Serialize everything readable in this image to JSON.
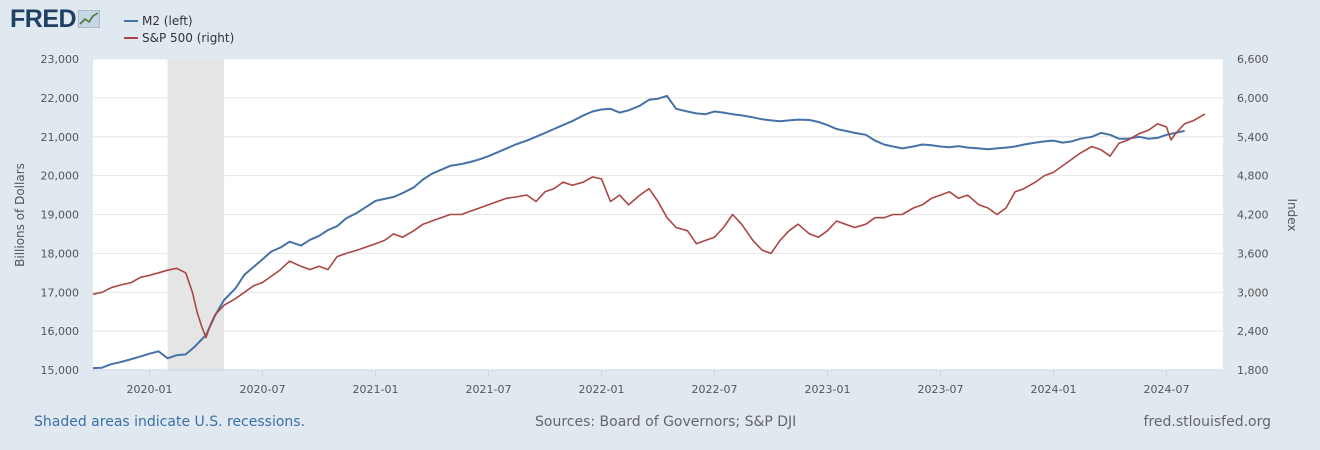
{
  "brand": {
    "name": "FRED",
    "icon": "fred-chart-logo-icon"
  },
  "colors": {
    "m2": "#4572a7",
    "sp500": "#aa4643",
    "recession": "#e5e5e5",
    "grid": "#e6e6e6",
    "background": "#e1e9f0"
  },
  "legend": [
    {
      "label": "M2 (left)",
      "color": "#4572a7"
    },
    {
      "label": "S&P 500 (right)",
      "color": "#aa4643"
    }
  ],
  "footer": {
    "recession_note": "Shaded areas indicate U.S. recessions.",
    "sources": "Sources: Board of Governors; S&P DJI",
    "site": "fred.stlouisfed.org"
  },
  "chart_data": {
    "type": "line",
    "xlim": [
      2019.75,
      2024.75
    ],
    "x_ticks": [
      {
        "label": "2020-01",
        "x": 2020.0
      },
      {
        "label": "2020-07",
        "x": 2020.5
      },
      {
        "label": "2021-01",
        "x": 2021.0
      },
      {
        "label": "2021-07",
        "x": 2021.5
      },
      {
        "label": "2022-01",
        "x": 2022.0
      },
      {
        "label": "2022-07",
        "x": 2022.5
      },
      {
        "label": "2023-01",
        "x": 2023.0
      },
      {
        "label": "2023-07",
        "x": 2023.5
      },
      {
        "label": "2024-01",
        "x": 2024.0
      },
      {
        "label": "2024-07",
        "x": 2024.5
      }
    ],
    "left_axis": {
      "label": "Billions of Dollars",
      "range": [
        15000,
        23000
      ],
      "ticks": [
        {
          "label": "15,000",
          "value": 15000
        },
        {
          "label": "16,000",
          "value": 16000
        },
        {
          "label": "17,000",
          "value": 17000
        },
        {
          "label": "18,000",
          "value": 18000
        },
        {
          "label": "19,000",
          "value": 19000
        },
        {
          "label": "20,000",
          "value": 20000
        },
        {
          "label": "21,000",
          "value": 21000
        },
        {
          "label": "22,000",
          "value": 22000
        },
        {
          "label": "23,000",
          "value": 23000
        }
      ]
    },
    "right_axis": {
      "label": "Index",
      "range": [
        1800,
        6600
      ],
      "ticks": [
        {
          "label": "1,800",
          "value": 1800
        },
        {
          "label": "2,400",
          "value": 2400
        },
        {
          "label": "3,000",
          "value": 3000
        },
        {
          "label": "3,600",
          "value": 3600
        },
        {
          "label": "4,200",
          "value": 4200
        },
        {
          "label": "4,800",
          "value": 4800
        },
        {
          "label": "5,400",
          "value": 5400
        },
        {
          "label": "6,000",
          "value": 6000
        },
        {
          "label": "6,600",
          "value": 6600
        }
      ]
    },
    "recessions": [
      {
        "start": 2020.08,
        "end": 2020.33
      }
    ],
    "series": [
      {
        "name": "M2 (left)",
        "axis": "left",
        "color": "#4572a7",
        "points": [
          [
            2019.75,
            15050
          ],
          [
            2019.79,
            15060
          ],
          [
            2019.83,
            15150
          ],
          [
            2019.87,
            15200
          ],
          [
            2019.92,
            15280
          ],
          [
            2019.96,
            15350
          ],
          [
            2020.0,
            15420
          ],
          [
            2020.04,
            15480
          ],
          [
            2020.08,
            15300
          ],
          [
            2020.12,
            15380
          ],
          [
            2020.16,
            15400
          ],
          [
            2020.2,
            15600
          ],
          [
            2020.25,
            15900
          ],
          [
            2020.29,
            16400
          ],
          [
            2020.33,
            16800
          ],
          [
            2020.38,
            17100
          ],
          [
            2020.42,
            17450
          ],
          [
            2020.46,
            17650
          ],
          [
            2020.5,
            17850
          ],
          [
            2020.54,
            18050
          ],
          [
            2020.58,
            18150
          ],
          [
            2020.62,
            18300
          ],
          [
            2020.67,
            18200
          ],
          [
            2020.71,
            18350
          ],
          [
            2020.75,
            18450
          ],
          [
            2020.79,
            18600
          ],
          [
            2020.83,
            18700
          ],
          [
            2020.87,
            18900
          ],
          [
            2020.92,
            19050
          ],
          [
            2020.96,
            19200
          ],
          [
            2021.0,
            19350
          ],
          [
            2021.04,
            19400
          ],
          [
            2021.08,
            19450
          ],
          [
            2021.12,
            19550
          ],
          [
            2021.17,
            19700
          ],
          [
            2021.21,
            19900
          ],
          [
            2021.25,
            20050
          ],
          [
            2021.29,
            20150
          ],
          [
            2021.33,
            20250
          ],
          [
            2021.38,
            20300
          ],
          [
            2021.42,
            20350
          ],
          [
            2021.46,
            20420
          ],
          [
            2021.5,
            20500
          ],
          [
            2021.54,
            20600
          ],
          [
            2021.58,
            20700
          ],
          [
            2021.62,
            20800
          ],
          [
            2021.67,
            20900
          ],
          [
            2021.71,
            21000
          ],
          [
            2021.75,
            21100
          ],
          [
            2021.79,
            21200
          ],
          [
            2021.83,
            21300
          ],
          [
            2021.87,
            21400
          ],
          [
            2021.92,
            21550
          ],
          [
            2021.96,
            21650
          ],
          [
            2022.0,
            21700
          ],
          [
            2022.04,
            21720
          ],
          [
            2022.08,
            21620
          ],
          [
            2022.12,
            21680
          ],
          [
            2022.17,
            21800
          ],
          [
            2022.21,
            21950
          ],
          [
            2022.25,
            21980
          ],
          [
            2022.29,
            22050
          ],
          [
            2022.33,
            21720
          ],
          [
            2022.38,
            21650
          ],
          [
            2022.42,
            21600
          ],
          [
            2022.46,
            21580
          ],
          [
            2022.5,
            21650
          ],
          [
            2022.54,
            21620
          ],
          [
            2022.58,
            21580
          ],
          [
            2022.62,
            21550
          ],
          [
            2022.67,
            21500
          ],
          [
            2022.71,
            21450
          ],
          [
            2022.75,
            21420
          ],
          [
            2022.79,
            21400
          ],
          [
            2022.83,
            21420
          ],
          [
            2022.87,
            21440
          ],
          [
            2022.92,
            21430
          ],
          [
            2022.96,
            21380
          ],
          [
            2023.0,
            21300
          ],
          [
            2023.04,
            21200
          ],
          [
            2023.08,
            21150
          ],
          [
            2023.12,
            21100
          ],
          [
            2023.17,
            21050
          ],
          [
            2023.21,
            20900
          ],
          [
            2023.25,
            20800
          ],
          [
            2023.29,
            20750
          ],
          [
            2023.33,
            20700
          ],
          [
            2023.38,
            20750
          ],
          [
            2023.42,
            20800
          ],
          [
            2023.46,
            20780
          ],
          [
            2023.5,
            20750
          ],
          [
            2023.54,
            20730
          ],
          [
            2023.58,
            20760
          ],
          [
            2023.62,
            20720
          ],
          [
            2023.67,
            20700
          ],
          [
            2023.71,
            20680
          ],
          [
            2023.75,
            20700
          ],
          [
            2023.79,
            20720
          ],
          [
            2023.83,
            20750
          ],
          [
            2023.87,
            20800
          ],
          [
            2023.92,
            20850
          ],
          [
            2023.96,
            20880
          ],
          [
            2024.0,
            20900
          ],
          [
            2024.04,
            20850
          ],
          [
            2024.08,
            20880
          ],
          [
            2024.12,
            20950
          ],
          [
            2024.17,
            21000
          ],
          [
            2024.21,
            21100
          ],
          [
            2024.25,
            21050
          ],
          [
            2024.29,
            20950
          ],
          [
            2024.33,
            20950
          ],
          [
            2024.38,
            21000
          ],
          [
            2024.42,
            20950
          ],
          [
            2024.46,
            20970
          ],
          [
            2024.5,
            21050
          ],
          [
            2024.54,
            21100
          ],
          [
            2024.58,
            21150
          ]
        ]
      },
      {
        "name": "S&P 500 (right)",
        "axis": "right",
        "color": "#aa4643",
        "points": [
          [
            2019.75,
            2970
          ],
          [
            2019.79,
            3000
          ],
          [
            2019.83,
            3070
          ],
          [
            2019.87,
            3110
          ],
          [
            2019.92,
            3150
          ],
          [
            2019.96,
            3230
          ],
          [
            2020.0,
            3260
          ],
          [
            2020.04,
            3300
          ],
          [
            2020.08,
            3340
          ],
          [
            2020.12,
            3370
          ],
          [
            2020.16,
            3300
          ],
          [
            2020.19,
            3000
          ],
          [
            2020.21,
            2700
          ],
          [
            2020.23,
            2480
          ],
          [
            2020.25,
            2300
          ],
          [
            2020.27,
            2500
          ],
          [
            2020.29,
            2650
          ],
          [
            2020.33,
            2800
          ],
          [
            2020.38,
            2900
          ],
          [
            2020.42,
            3000
          ],
          [
            2020.46,
            3100
          ],
          [
            2020.5,
            3150
          ],
          [
            2020.54,
            3250
          ],
          [
            2020.58,
            3350
          ],
          [
            2020.62,
            3480
          ],
          [
            2020.67,
            3400
          ],
          [
            2020.71,
            3350
          ],
          [
            2020.75,
            3400
          ],
          [
            2020.79,
            3350
          ],
          [
            2020.83,
            3550
          ],
          [
            2020.87,
            3600
          ],
          [
            2020.92,
            3650
          ],
          [
            2020.96,
            3700
          ],
          [
            2021.0,
            3750
          ],
          [
            2021.04,
            3800
          ],
          [
            2021.08,
            3900
          ],
          [
            2021.12,
            3850
          ],
          [
            2021.17,
            3950
          ],
          [
            2021.21,
            4050
          ],
          [
            2021.25,
            4100
          ],
          [
            2021.29,
            4150
          ],
          [
            2021.33,
            4200
          ],
          [
            2021.38,
            4200
          ],
          [
            2021.42,
            4250
          ],
          [
            2021.46,
            4300
          ],
          [
            2021.5,
            4350
          ],
          [
            2021.54,
            4400
          ],
          [
            2021.58,
            4450
          ],
          [
            2021.62,
            4470
          ],
          [
            2021.67,
            4500
          ],
          [
            2021.71,
            4400
          ],
          [
            2021.75,
            4550
          ],
          [
            2021.79,
            4600
          ],
          [
            2021.83,
            4700
          ],
          [
            2021.87,
            4650
          ],
          [
            2021.92,
            4700
          ],
          [
            2021.96,
            4780
          ],
          [
            2022.0,
            4750
          ],
          [
            2022.04,
            4400
          ],
          [
            2022.08,
            4500
          ],
          [
            2022.12,
            4350
          ],
          [
            2022.17,
            4500
          ],
          [
            2022.21,
            4600
          ],
          [
            2022.25,
            4400
          ],
          [
            2022.29,
            4150
          ],
          [
            2022.33,
            4000
          ],
          [
            2022.38,
            3950
          ],
          [
            2022.42,
            3750
          ],
          [
            2022.46,
            3800
          ],
          [
            2022.5,
            3850
          ],
          [
            2022.54,
            4000
          ],
          [
            2022.58,
            4200
          ],
          [
            2022.62,
            4050
          ],
          [
            2022.67,
            3800
          ],
          [
            2022.71,
            3650
          ],
          [
            2022.75,
            3600
          ],
          [
            2022.79,
            3800
          ],
          [
            2022.83,
            3950
          ],
          [
            2022.87,
            4050
          ],
          [
            2022.92,
            3900
          ],
          [
            2022.96,
            3850
          ],
          [
            2023.0,
            3950
          ],
          [
            2023.04,
            4100
          ],
          [
            2023.08,
            4050
          ],
          [
            2023.12,
            4000
          ],
          [
            2023.17,
            4050
          ],
          [
            2023.21,
            4150
          ],
          [
            2023.25,
            4150
          ],
          [
            2023.29,
            4200
          ],
          [
            2023.33,
            4200
          ],
          [
            2023.38,
            4300
          ],
          [
            2023.42,
            4350
          ],
          [
            2023.46,
            4450
          ],
          [
            2023.5,
            4500
          ],
          [
            2023.54,
            4550
          ],
          [
            2023.58,
            4450
          ],
          [
            2023.62,
            4500
          ],
          [
            2023.67,
            4350
          ],
          [
            2023.71,
            4300
          ],
          [
            2023.75,
            4200
          ],
          [
            2023.79,
            4300
          ],
          [
            2023.83,
            4550
          ],
          [
            2023.87,
            4600
          ],
          [
            2023.92,
            4700
          ],
          [
            2023.96,
            4800
          ],
          [
            2024.0,
            4850
          ],
          [
            2024.04,
            4950
          ],
          [
            2024.08,
            5050
          ],
          [
            2024.12,
            5150
          ],
          [
            2024.17,
            5250
          ],
          [
            2024.21,
            5200
          ],
          [
            2024.25,
            5100
          ],
          [
            2024.29,
            5300
          ],
          [
            2024.33,
            5350
          ],
          [
            2024.38,
            5450
          ],
          [
            2024.42,
            5500
          ],
          [
            2024.46,
            5600
          ],
          [
            2024.5,
            5550
          ],
          [
            2024.52,
            5350
          ],
          [
            2024.54,
            5450
          ],
          [
            2024.58,
            5600
          ],
          [
            2024.62,
            5650
          ],
          [
            2024.67,
            5750
          ]
        ]
      }
    ]
  }
}
